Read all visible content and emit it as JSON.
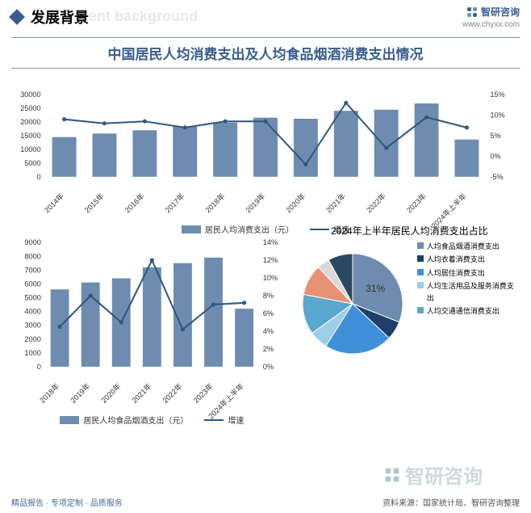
{
  "colors": {
    "primary": "#395d8e",
    "bar": "#6e8caf",
    "line": "#2f587f",
    "band_border": "#7a9abf",
    "shadow_text": "#e8e8e8",
    "text": "#333333",
    "footer_left": "#4a6a9a",
    "footer_right": "#555555",
    "watermark": "rgba(120,140,160,0.35)"
  },
  "header": {
    "title": "发展背景",
    "title_shadow": "ent background",
    "brand_name": "智研咨询",
    "brand_url": "www.chyxx.com"
  },
  "chart1": {
    "title": "中国居民人均消费支出及人均食品烟酒消费支出情况",
    "type": "bar+line",
    "categories": [
      "2014年",
      "2015年",
      "2016年",
      "2017年",
      "2018年",
      "2019年",
      "2020年",
      "2021年",
      "2022年",
      "2023年",
      "2024年上半年"
    ],
    "bar_values": [
      14500,
      15800,
      17000,
      18300,
      19800,
      21600,
      21200,
      24100,
      24500,
      26800,
      13600
    ],
    "line_values": [
      9,
      8,
      8.5,
      7,
      8.5,
      8.5,
      -2,
      13,
      2,
      9.5,
      7
    ],
    "left_axis": {
      "min": 0,
      "max": 30000,
      "ticks": [
        0,
        5000,
        10000,
        15000,
        20000,
        25000,
        30000
      ]
    },
    "right_axis": {
      "min": -5,
      "max": 15,
      "ticks": [
        "-5%",
        "0%",
        "5%",
        "10%",
        "15%"
      ]
    },
    "bar_color": "#6e8caf",
    "line_color": "#2f587f",
    "legend": [
      {
        "type": "bar",
        "label": "居民人均消费支出（元）"
      },
      {
        "type": "line",
        "label": "增速"
      }
    ]
  },
  "chart2": {
    "type": "bar+line",
    "categories": [
      "2018年",
      "2019年",
      "2020年",
      "2021年",
      "2022年",
      "2023年",
      "2024年上半年"
    ],
    "bar_values": [
      5600,
      6100,
      6400,
      7200,
      7500,
      7900,
      4200
    ],
    "line_values": [
      4.5,
      8,
      5,
      12,
      4.2,
      7,
      7.2
    ],
    "left_axis": {
      "min": 0,
      "max": 9000,
      "ticks": [
        0,
        1000,
        2000,
        3000,
        4000,
        5000,
        6000,
        7000,
        8000,
        9000
      ]
    },
    "right_axis": {
      "min": 0,
      "max": 14,
      "ticks": [
        "0%",
        "2%",
        "4%",
        "6%",
        "8%",
        "10%",
        "12%",
        "14%"
      ]
    },
    "bar_color": "#6e8caf",
    "line_color": "#2f587f",
    "legend": [
      {
        "type": "bar",
        "label": "居民人均食品烟酒支出（元）"
      },
      {
        "type": "line",
        "label": "增速"
      }
    ]
  },
  "chart3": {
    "title": "2024年上半年居民人均消费支出占比",
    "type": "pie",
    "highlight_label": "31%",
    "slices": [
      {
        "label": "人均食品烟酒消费支出",
        "value": 31,
        "color": "#6e8caf"
      },
      {
        "label": "人均衣着消费支出",
        "value": 6,
        "color": "#1f3f6b"
      },
      {
        "label": "人均居住消费支出",
        "value": 22,
        "color": "#3f8fd9"
      },
      {
        "label": "人均生活用品及服务消费支出",
        "value": 6,
        "color": "#9dcde9"
      },
      {
        "label": "人均交通通信消费支出",
        "value": 13,
        "color": "#5aa7d1"
      },
      {
        "label": "",
        "value": 10,
        "color": "#e89174"
      },
      {
        "label": "",
        "value": 4,
        "color": "#d9d9d9"
      },
      {
        "label": "",
        "value": 8,
        "color": "#2c4860"
      }
    ]
  },
  "footer": {
    "left": "精品报告 · 专项定制 · 品质服务",
    "right": "资料来源：国家统计局、智研咨询整理",
    "watermark": "智研咨询"
  }
}
